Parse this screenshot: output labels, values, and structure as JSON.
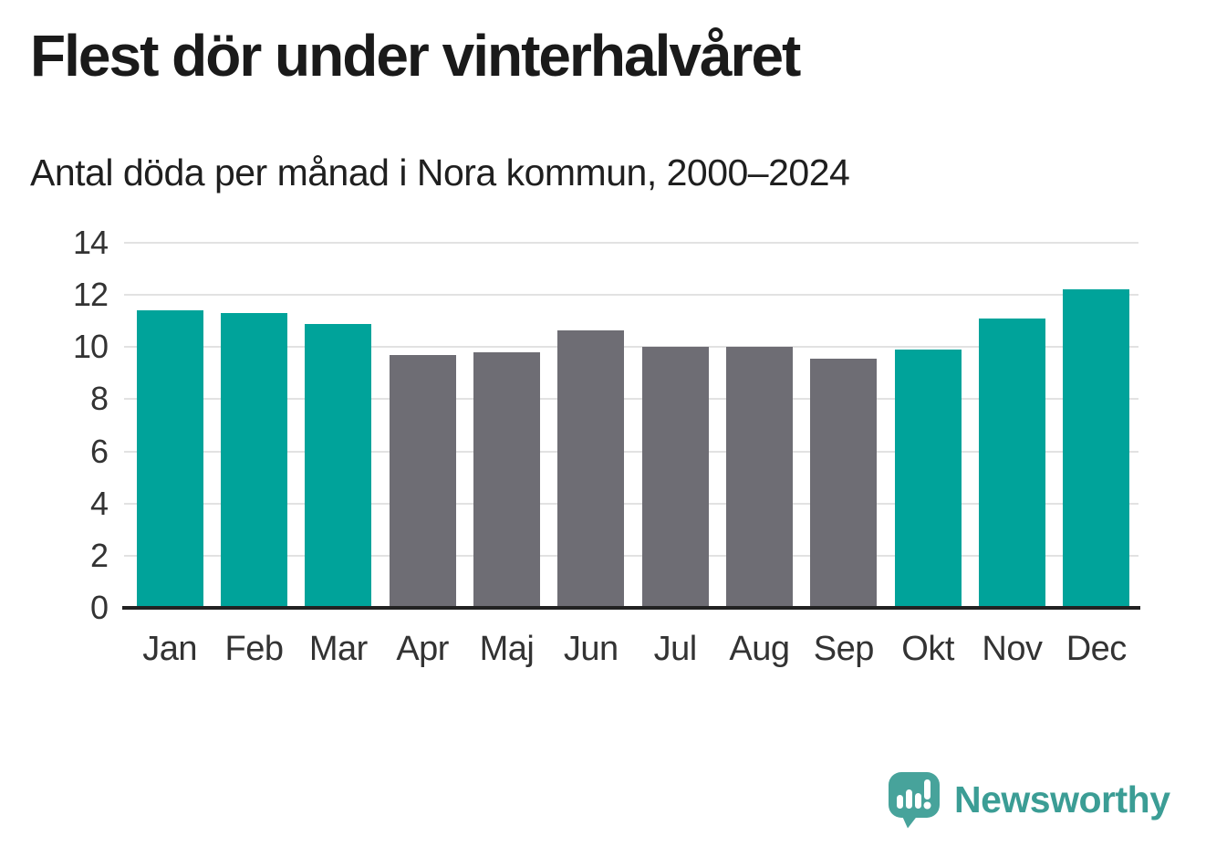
{
  "title": "Flest dör under vinterhalvåret",
  "subtitle": "Antal döda per månad i Nora kommun, 2000–2024",
  "branding": {
    "logo_text": "Newsworthy",
    "logo_text_color": "#3b9d95",
    "logo_mark_color": "#47a39b",
    "logo_mark_glyph_color": "#ffffff",
    "logo_icon": "bar-chart-exclamation-bubble-icon"
  },
  "chart_data": {
    "type": "bar",
    "title": "Flest dör under vinterhalvåret",
    "subtitle": "Antal döda per månad i Nora kommun, 2000–2024",
    "categories": [
      "Jan",
      "Feb",
      "Mar",
      "Apr",
      "Maj",
      "Jun",
      "Jul",
      "Aug",
      "Sep",
      "Okt",
      "Nov",
      "Dec"
    ],
    "values": [
      11.4,
      11.3,
      10.9,
      9.7,
      9.8,
      10.65,
      10.0,
      10.0,
      9.55,
      9.9,
      11.1,
      12.2
    ],
    "bar_color_keys": [
      "teal",
      "teal",
      "teal",
      "gray",
      "gray",
      "gray",
      "gray",
      "gray",
      "gray",
      "teal",
      "teal",
      "teal"
    ],
    "colors": {
      "teal": "#00a39a",
      "gray": "#6e6d74",
      "grid": "#e2e2e2",
      "axis": "#222222",
      "tick_text": "#333333"
    },
    "xlabel": "",
    "ylabel": "",
    "ylim": [
      0,
      14
    ],
    "yticks": [
      0,
      2,
      4,
      6,
      8,
      10,
      12,
      14
    ],
    "grid": true,
    "legend": false
  }
}
